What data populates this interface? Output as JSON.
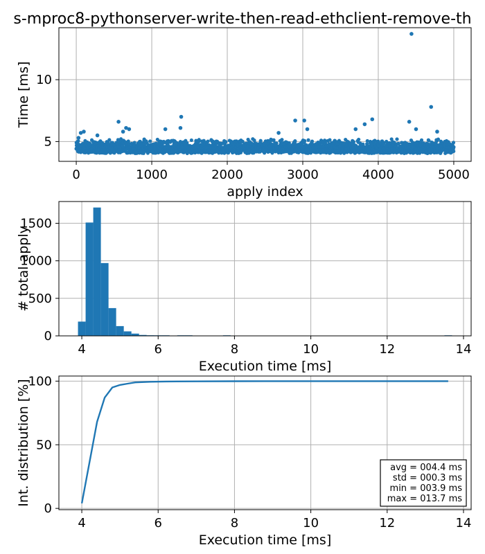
{
  "figure_title": "s-mproc8-pythonserver-write-then-read-ethclient-remove-th",
  "colors": {
    "series": "#1f77b4",
    "grid": "#b0b0b0"
  },
  "chart_data": [
    {
      "type": "scatter",
      "xlabel": "apply index",
      "ylabel": "Time [ms]",
      "xlim": [
        -230,
        5230
      ],
      "ylim": [
        3.4,
        14.2
      ],
      "xticks": [
        0,
        1000,
        2000,
        3000,
        4000,
        5000
      ],
      "yticks": [
        5,
        10
      ],
      "grid": true,
      "band": {
        "x_start": 0,
        "x_end": 5000,
        "y_low": 3.9,
        "y_high": 5.0
      },
      "outliers": [
        {
          "x": 30,
          "y": 5.3
        },
        {
          "x": 60,
          "y": 5.7
        },
        {
          "x": 100,
          "y": 5.8
        },
        {
          "x": 280,
          "y": 5.5
        },
        {
          "x": 560,
          "y": 6.6
        },
        {
          "x": 620,
          "y": 5.8
        },
        {
          "x": 660,
          "y": 6.1
        },
        {
          "x": 700,
          "y": 6.0
        },
        {
          "x": 1180,
          "y": 6.0
        },
        {
          "x": 1390,
          "y": 7.0
        },
        {
          "x": 1380,
          "y": 6.1
        },
        {
          "x": 2680,
          "y": 5.7
        },
        {
          "x": 2900,
          "y": 6.7
        },
        {
          "x": 3020,
          "y": 6.7
        },
        {
          "x": 3060,
          "y": 6.0
        },
        {
          "x": 3700,
          "y": 6.0
        },
        {
          "x": 3820,
          "y": 6.4
        },
        {
          "x": 3920,
          "y": 6.8
        },
        {
          "x": 4410,
          "y": 6.6
        },
        {
          "x": 4440,
          "y": 13.7
        },
        {
          "x": 4500,
          "y": 6.0
        },
        {
          "x": 4700,
          "y": 7.8
        },
        {
          "x": 4780,
          "y": 5.8
        }
      ]
    },
    {
      "type": "bar",
      "xlabel": "Execution time [ms]",
      "ylabel": "# total apply",
      "xlim": [
        3.4,
        14.2
      ],
      "ylim": [
        0,
        1790
      ],
      "xticks": [
        4,
        6,
        8,
        10,
        12,
        14
      ],
      "yticks": [
        0,
        500,
        1000,
        1500
      ],
      "grid": true,
      "bin_width": 0.2,
      "bins": [
        {
          "x": 3.9,
          "value": 190
        },
        {
          "x": 4.1,
          "value": 1510
        },
        {
          "x": 4.3,
          "value": 1710
        },
        {
          "x": 4.5,
          "value": 970
        },
        {
          "x": 4.7,
          "value": 370
        },
        {
          "x": 4.9,
          "value": 130
        },
        {
          "x": 5.1,
          "value": 60
        },
        {
          "x": 5.3,
          "value": 30
        },
        {
          "x": 5.5,
          "value": 12
        },
        {
          "x": 5.7,
          "value": 8
        },
        {
          "x": 5.9,
          "value": 6
        },
        {
          "x": 6.1,
          "value": 4
        },
        {
          "x": 6.5,
          "value": 3
        },
        {
          "x": 6.7,
          "value": 3
        },
        {
          "x": 7.7,
          "value": 1
        },
        {
          "x": 13.5,
          "value": 1
        }
      ]
    },
    {
      "type": "line",
      "xlabel": "Execution time [ms]",
      "ylabel": "Int. distribution [%]",
      "xlim": [
        3.4,
        14.2
      ],
      "ylim": [
        -1,
        104
      ],
      "xticks": [
        4,
        6,
        8,
        10,
        12,
        14
      ],
      "yticks": [
        0,
        50,
        100
      ],
      "grid": true,
      "x": [
        4.0,
        4.2,
        4.4,
        4.6,
        4.8,
        5.0,
        5.2,
        5.4,
        5.8,
        6.2,
        7.0,
        8.0,
        10.0,
        12.0,
        13.6
      ],
      "y": [
        4,
        36,
        68,
        87,
        95,
        97,
        98,
        99,
        99.5,
        99.7,
        99.8,
        99.9,
        99.95,
        99.98,
        100
      ],
      "annotation": [
        "avg = 004.4 ms",
        "std = 000.3 ms",
        "min = 003.9 ms",
        "max = 013.7 ms"
      ]
    }
  ]
}
